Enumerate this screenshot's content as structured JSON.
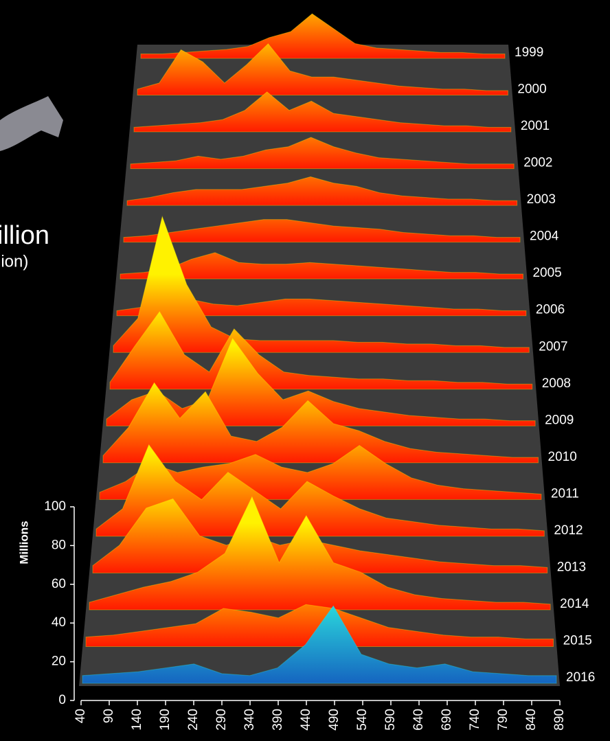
{
  "chart_data": {
    "type": "ridgeline",
    "annotations": [
      "illion",
      "lion)"
    ],
    "y_label": "Millions",
    "x": [
      40,
      90,
      140,
      190,
      240,
      290,
      340,
      390,
      440,
      490,
      540,
      590,
      640,
      690,
      740,
      790,
      840,
      890
    ],
    "xlim": [
      40,
      890
    ],
    "xticks": [
      40,
      90,
      140,
      190,
      240,
      290,
      340,
      390,
      440,
      490,
      540,
      590,
      640,
      690,
      740,
      790,
      840,
      890
    ],
    "ylim": [
      0,
      100
    ],
    "yticks": [
      0,
      20,
      40,
      60,
      80,
      100
    ],
    "series": [
      {
        "name": "1999",
        "color": "#ff1a00",
        "highlight": "#fff200",
        "values": [
          3,
          3,
          4,
          5,
          6,
          8,
          14,
          18,
          30,
          20,
          10,
          7,
          6,
          5,
          4,
          4,
          3,
          3
        ]
      },
      {
        "name": "2000",
        "color": "#ff1a00",
        "highlight": "#fff200",
        "values": [
          4,
          8,
          30,
          22,
          8,
          20,
          34,
          16,
          12,
          12,
          10,
          8,
          6,
          5,
          4,
          4,
          3,
          3
        ]
      },
      {
        "name": "2001",
        "color": "#ff1a00",
        "highlight": "#fff200",
        "values": [
          3,
          4,
          5,
          6,
          8,
          14,
          26,
          14,
          20,
          12,
          10,
          8,
          6,
          5,
          4,
          4,
          3,
          3
        ]
      },
      {
        "name": "2002",
        "color": "#ff1a00",
        "highlight": "#fff200",
        "values": [
          3,
          4,
          5,
          8,
          6,
          8,
          12,
          14,
          20,
          14,
          10,
          7,
          6,
          5,
          4,
          3,
          3,
          3
        ]
      },
      {
        "name": "2003",
        "color": "#ff1a00",
        "highlight": "#fff200",
        "values": [
          3,
          5,
          8,
          10,
          10,
          10,
          12,
          14,
          18,
          14,
          12,
          8,
          6,
          5,
          4,
          4,
          3,
          3
        ]
      },
      {
        "name": "2004",
        "color": "#ff1a00",
        "highlight": "#fff200",
        "values": [
          3,
          4,
          6,
          8,
          10,
          12,
          14,
          14,
          12,
          10,
          9,
          8,
          6,
          5,
          4,
          4,
          3,
          3
        ]
      },
      {
        "name": "2005",
        "color": "#ff1a00",
        "highlight": "#fff200",
        "values": [
          3,
          4,
          6,
          12,
          16,
          10,
          9,
          9,
          10,
          9,
          8,
          7,
          6,
          5,
          4,
          4,
          3,
          3
        ]
      },
      {
        "name": "2006",
        "color": "#ff1a00",
        "highlight": "#fff200",
        "values": [
          3,
          5,
          12,
          10,
          7,
          6,
          8,
          10,
          10,
          9,
          8,
          7,
          6,
          5,
          4,
          4,
          3,
          3
        ]
      },
      {
        "name": "2007",
        "color": "#ff1a00",
        "highlight": "#fff200",
        "values": [
          4,
          20,
          80,
          40,
          15,
          8,
          7,
          7,
          7,
          7,
          6,
          6,
          5,
          5,
          4,
          4,
          3,
          3
        ]
      },
      {
        "name": "2008",
        "color": "#ff1a00",
        "highlight": "#fff200",
        "values": [
          4,
          25,
          45,
          20,
          10,
          35,
          20,
          10,
          8,
          7,
          6,
          6,
          5,
          5,
          4,
          4,
          3,
          3
        ]
      },
      {
        "name": "2009",
        "color": "#ff1a00",
        "highlight": "#fff200",
        "values": [
          4,
          15,
          20,
          10,
          15,
          50,
          30,
          15,
          20,
          14,
          10,
          8,
          6,
          5,
          4,
          4,
          3,
          3
        ]
      },
      {
        "name": "2010",
        "color": "#ff1a00",
        "highlight": "#fff200",
        "values": [
          4,
          20,
          45,
          25,
          40,
          15,
          12,
          20,
          35,
          22,
          18,
          12,
          8,
          6,
          5,
          4,
          3,
          3
        ]
      },
      {
        "name": "2011",
        "color": "#ff1a00",
        "highlight": "#fff200",
        "values": [
          4,
          10,
          20,
          15,
          18,
          20,
          25,
          18,
          15,
          20,
          30,
          20,
          12,
          8,
          6,
          5,
          4,
          3
        ]
      },
      {
        "name": "2012",
        "color": "#ff1a00",
        "highlight": "#fff200",
        "values": [
          4,
          15,
          50,
          30,
          20,
          35,
          25,
          15,
          30,
          22,
          15,
          10,
          8,
          6,
          5,
          4,
          4,
          3
        ]
      },
      {
        "name": "2013",
        "color": "#ff1a00",
        "highlight": "#fff200",
        "values": [
          4,
          15,
          35,
          40,
          20,
          15,
          20,
          15,
          18,
          15,
          12,
          10,
          8,
          6,
          5,
          4,
          4,
          3
        ]
      },
      {
        "name": "2014",
        "color": "#ff1a00",
        "highlight": "#fff200",
        "values": [
          4,
          8,
          12,
          15,
          20,
          30,
          60,
          25,
          50,
          25,
          20,
          12,
          8,
          6,
          5,
          4,
          4,
          3
        ]
      },
      {
        "name": "2015",
        "color": "#ff1a00",
        "highlight": "#fff200",
        "values": [
          5,
          6,
          8,
          10,
          12,
          20,
          18,
          15,
          22,
          20,
          15,
          10,
          8,
          6,
          5,
          5,
          4,
          4
        ]
      },
      {
        "name": "2016",
        "color": "#1565c0",
        "highlight": "#2ee8e0",
        "values": [
          4,
          5,
          6,
          8,
          10,
          5,
          4,
          8,
          20,
          40,
          15,
          10,
          8,
          10,
          6,
          5,
          4,
          4
        ]
      }
    ]
  }
}
